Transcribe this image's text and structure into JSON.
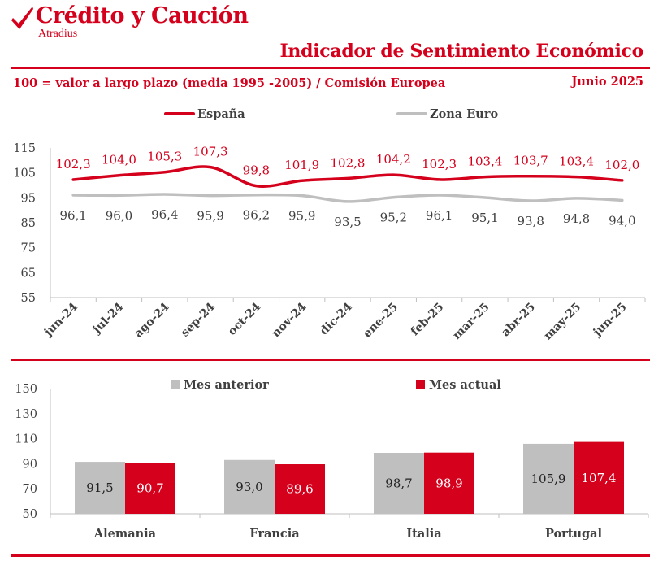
{
  "header": {
    "brand_name": "Crédito y Caución",
    "brand_sub": "Atradius",
    "title": "Indicador de Sentimiento Económico",
    "subtitle": "100 = valor a largo plazo (media 1995 -2005) / Comisión Europea",
    "date": "Junio 2025"
  },
  "colors": {
    "accent": "#d4001c",
    "grey": "#bfbfbf",
    "dark_text": "#404040"
  },
  "chart_data": [
    {
      "type": "line",
      "categories": [
        "jun-24",
        "jul-24",
        "ago-24",
        "sep-24",
        "oct-24",
        "nov-24",
        "dic-24",
        "ene-25",
        "feb-25",
        "mar-25",
        "abr-25",
        "may-25",
        "jun-25"
      ],
      "series": [
        {
          "name": "España",
          "color": "#d4001c",
          "values": [
            102.3,
            104.0,
            105.3,
            107.3,
            99.8,
            101.9,
            102.8,
            104.2,
            102.3,
            103.4,
            103.7,
            103.4,
            102.0
          ],
          "labels": [
            "102,3",
            "104,0",
            "105,3",
            "107,3",
            "99,8",
            "101,9",
            "102,8",
            "104,2",
            "102,3",
            "103,4",
            "103,7",
            "103,4",
            "102,0"
          ]
        },
        {
          "name": "Zona Euro",
          "color": "#bfbfbf",
          "values": [
            96.1,
            96.0,
            96.4,
            95.9,
            96.2,
            95.9,
            93.5,
            95.2,
            96.1,
            95.1,
            93.8,
            94.8,
            94.0
          ],
          "labels": [
            "96,1",
            "96,0",
            "96,4",
            "95,9",
            "96,2",
            "95,9",
            "93,5",
            "95,2",
            "96,1",
            "95,1",
            "93,8",
            "94,8",
            "94,0"
          ]
        }
      ],
      "ylim": [
        55,
        115
      ],
      "yticks": [
        55,
        65,
        75,
        85,
        95,
        105,
        115
      ],
      "legend": "top",
      "grid": false
    },
    {
      "type": "bar",
      "categories": [
        "Alemania",
        "Francia",
        "Italia",
        "Portugal"
      ],
      "series": [
        {
          "name": "Mes anterior",
          "color": "#bfbfbf",
          "values": [
            91.5,
            93.0,
            98.7,
            105.9
          ],
          "labels": [
            "91,5",
            "93,0",
            "98,7",
            "105,9"
          ]
        },
        {
          "name": "Mes actual",
          "color": "#d4001c",
          "values": [
            90.7,
            89.6,
            98.9,
            107.4
          ],
          "labels": [
            "90,7",
            "89,6",
            "98,9",
            "107,4"
          ]
        }
      ],
      "ylim": [
        50,
        150
      ],
      "yticks": [
        50,
        70,
        90,
        110,
        130,
        150
      ],
      "legend": "top",
      "grid": false
    }
  ]
}
